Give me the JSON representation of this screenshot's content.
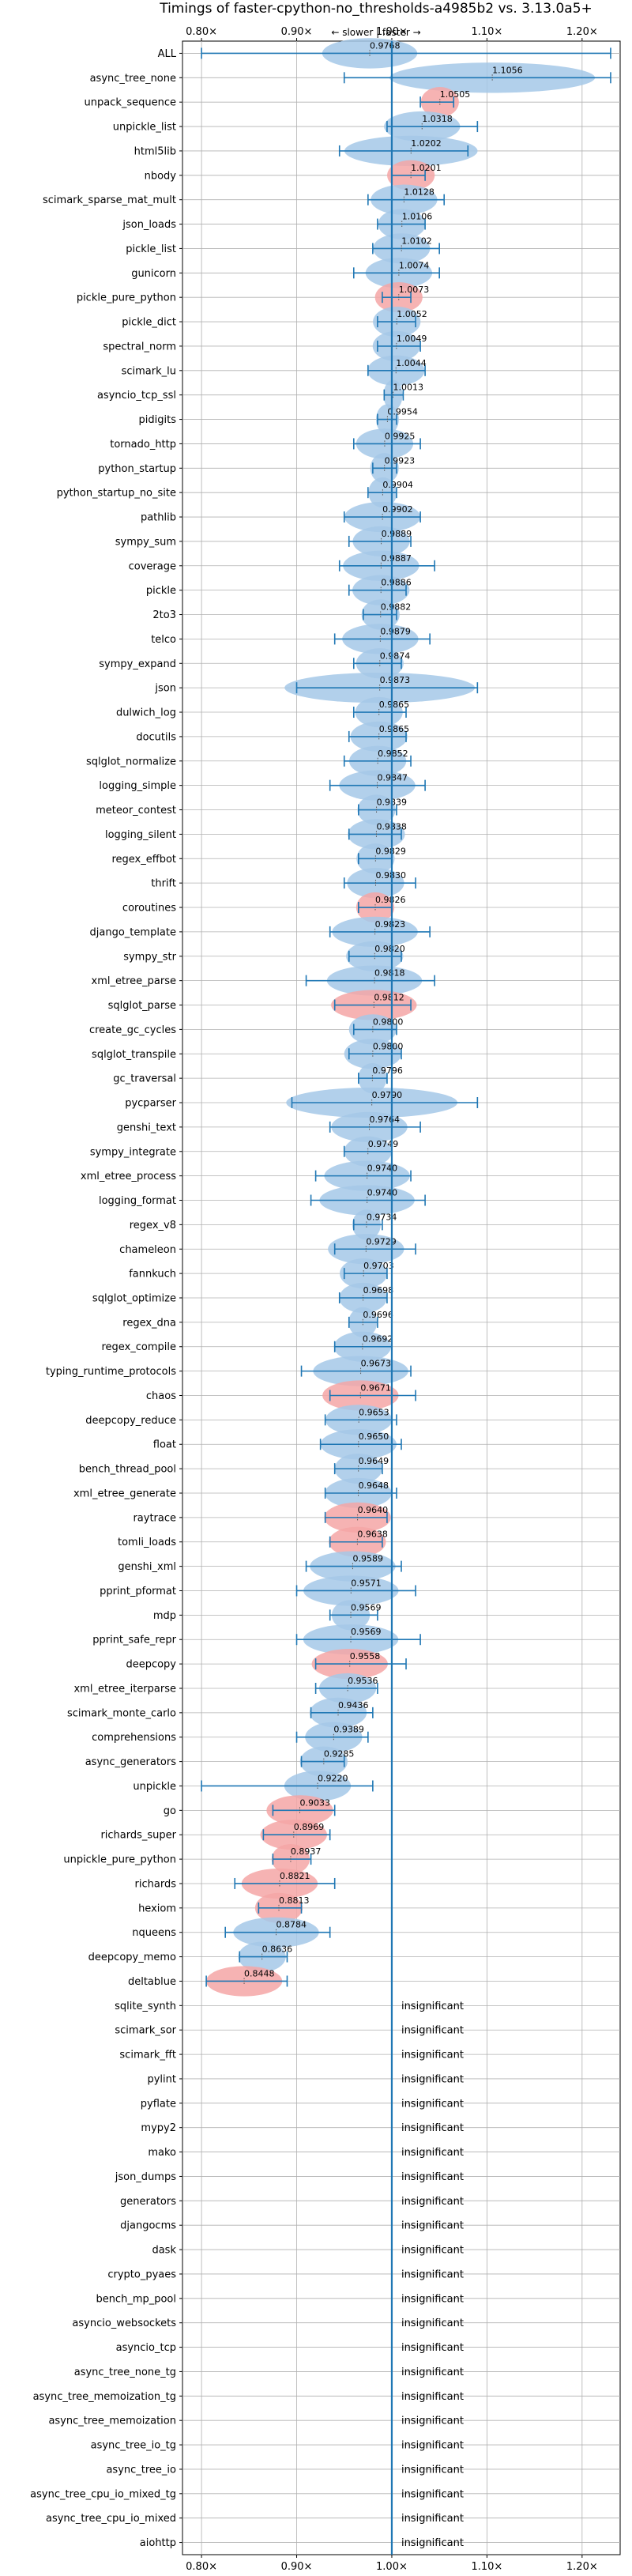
{
  "chart_data": {
    "type": "violin",
    "title": "Timings of faster-cpython-no_thresholds-a4985b2 vs. 3.13.0a5+",
    "direction_note": "← slower | faster →",
    "x_ticks": [
      {
        "value": 0.8,
        "label": "0.80×"
      },
      {
        "value": 0.9,
        "label": "0.90×"
      },
      {
        "value": 1.0,
        "label": "1.00×"
      },
      {
        "value": 1.1,
        "label": "1.10×"
      },
      {
        "value": 1.2,
        "label": "1.20×"
      }
    ],
    "xlim": [
      0.78,
      1.24
    ],
    "reference_line": 1.0,
    "grid": true,
    "colors": {
      "faster": "#a4c8e8",
      "slower": "#f4a6a6",
      "line": "#1f77b4",
      "grid": "#b0b0b0",
      "text": "#000000"
    },
    "insignificant_label": "insignificant",
    "benchmarks": [
      {
        "name": "ALL",
        "median": 0.9768,
        "label": "0.9768",
        "min": 0.8,
        "max": 1.23,
        "spread": 0.05,
        "color": "blue"
      },
      {
        "name": "async_tree_none",
        "median": 1.1056,
        "label": "1.1056",
        "min": 0.95,
        "max": 1.23,
        "spread": 0.12,
        "color": "blue"
      },
      {
        "name": "unpack_sequence",
        "median": 1.0505,
        "label": "1.0505",
        "min": 1.03,
        "max": 1.065,
        "spread": 0.02,
        "color": "red"
      },
      {
        "name": "unpickle_list",
        "median": 1.0318,
        "label": "1.0318",
        "min": 0.995,
        "max": 1.09,
        "spread": 0.04,
        "color": "blue"
      },
      {
        "name": "html5lib",
        "median": 1.0202,
        "label": "1.0202",
        "min": 0.945,
        "max": 1.08,
        "spread": 0.07,
        "color": "blue"
      },
      {
        "name": "nbody",
        "median": 1.0201,
        "label": "1.0201",
        "min": 1.0,
        "max": 1.035,
        "spread": 0.025,
        "color": "red"
      },
      {
        "name": "scimark_sparse_mat_mult",
        "median": 1.0128,
        "label": "1.0128",
        "min": 0.975,
        "max": 1.055,
        "spread": 0.035,
        "color": "blue"
      },
      {
        "name": "json_loads",
        "median": 1.0106,
        "label": "1.0106",
        "min": 0.985,
        "max": 1.035,
        "spread": 0.025,
        "color": "blue"
      },
      {
        "name": "pickle_list",
        "median": 1.0102,
        "label": "1.0102",
        "min": 0.98,
        "max": 1.05,
        "spread": 0.03,
        "color": "blue"
      },
      {
        "name": "gunicorn",
        "median": 1.0074,
        "label": "1.0074",
        "min": 0.96,
        "max": 1.05,
        "spread": 0.035,
        "color": "blue"
      },
      {
        "name": "pickle_pure_python",
        "median": 1.0073,
        "label": "1.0073",
        "min": 0.99,
        "max": 1.02,
        "spread": 0.025,
        "color": "red"
      },
      {
        "name": "pickle_dict",
        "median": 1.0052,
        "label": "1.0052",
        "min": 0.985,
        "max": 1.025,
        "spread": 0.025,
        "color": "blue"
      },
      {
        "name": "spectral_norm",
        "median": 1.0049,
        "label": "1.0049",
        "min": 0.985,
        "max": 1.03,
        "spread": 0.025,
        "color": "blue"
      },
      {
        "name": "scimark_lu",
        "median": 1.0044,
        "label": "1.0044",
        "min": 0.975,
        "max": 1.035,
        "spread": 0.03,
        "color": "blue"
      },
      {
        "name": "asyncio_tcp_ssl",
        "median": 1.0013,
        "label": "1.0013",
        "min": 0.992,
        "max": 1.012,
        "spread": 0.01,
        "color": "blue"
      },
      {
        "name": "pidigits",
        "median": 0.9954,
        "label": "0.9954",
        "min": 0.985,
        "max": 1.005,
        "spread": 0.012,
        "color": "blue"
      },
      {
        "name": "tornado_http",
        "median": 0.9925,
        "label": "0.9925",
        "min": 0.96,
        "max": 1.03,
        "spread": 0.03,
        "color": "blue"
      },
      {
        "name": "python_startup",
        "median": 0.9923,
        "label": "0.9923",
        "min": 0.98,
        "max": 1.005,
        "spread": 0.015,
        "color": "blue"
      },
      {
        "name": "python_startup_no_site",
        "median": 0.9904,
        "label": "0.9904",
        "min": 0.975,
        "max": 1.005,
        "spread": 0.015,
        "color": "blue"
      },
      {
        "name": "pathlib",
        "median": 0.9902,
        "label": "0.9902",
        "min": 0.95,
        "max": 1.03,
        "spread": 0.04,
        "color": "blue"
      },
      {
        "name": "sympy_sum",
        "median": 0.9889,
        "label": "0.9889",
        "min": 0.955,
        "max": 1.02,
        "spread": 0.03,
        "color": "blue"
      },
      {
        "name": "coverage",
        "median": 0.9887,
        "label": "0.9887",
        "min": 0.945,
        "max": 1.045,
        "spread": 0.04,
        "color": "blue"
      },
      {
        "name": "pickle",
        "median": 0.9886,
        "label": "0.9886",
        "min": 0.955,
        "max": 1.015,
        "spread": 0.03,
        "color": "blue"
      },
      {
        "name": "2to3",
        "median": 0.9882,
        "label": "0.9882",
        "min": 0.97,
        "max": 1.005,
        "spread": 0.02,
        "color": "blue"
      },
      {
        "name": "telco",
        "median": 0.9879,
        "label": "0.9879",
        "min": 0.94,
        "max": 1.04,
        "spread": 0.04,
        "color": "blue"
      },
      {
        "name": "sympy_expand",
        "median": 0.9874,
        "label": "0.9874",
        "min": 0.96,
        "max": 1.01,
        "spread": 0.025,
        "color": "blue"
      },
      {
        "name": "json",
        "median": 0.9873,
        "label": "0.9873",
        "min": 0.9,
        "max": 1.09,
        "spread": 0.1,
        "color": "blue"
      },
      {
        "name": "dulwich_log",
        "median": 0.9865,
        "label": "0.9865",
        "min": 0.96,
        "max": 1.015,
        "spread": 0.025,
        "color": "blue"
      },
      {
        "name": "docutils",
        "median": 0.9865,
        "label": "0.9865",
        "min": 0.955,
        "max": 1.015,
        "spread": 0.03,
        "color": "blue"
      },
      {
        "name": "sqlglot_normalize",
        "median": 0.9852,
        "label": "0.9852",
        "min": 0.95,
        "max": 1.02,
        "spread": 0.03,
        "color": "blue"
      },
      {
        "name": "logging_simple",
        "median": 0.9847,
        "label": "0.9847",
        "min": 0.935,
        "max": 1.035,
        "spread": 0.04,
        "color": "blue"
      },
      {
        "name": "meteor_contest",
        "median": 0.9839,
        "label": "0.9839",
        "min": 0.965,
        "max": 1.005,
        "spread": 0.02,
        "color": "blue"
      },
      {
        "name": "logging_silent",
        "median": 0.9838,
        "label": "0.9838",
        "min": 0.955,
        "max": 1.01,
        "spread": 0.03,
        "color": "blue"
      },
      {
        "name": "regex_effbot",
        "median": 0.9829,
        "label": "0.9829",
        "min": 0.965,
        "max": 1.0,
        "spread": 0.02,
        "color": "blue"
      },
      {
        "name": "thrift",
        "median": 0.983,
        "label": "0.9830",
        "min": 0.95,
        "max": 1.025,
        "spread": 0.03,
        "color": "blue"
      },
      {
        "name": "coroutines",
        "median": 0.9826,
        "label": "0.9826",
        "min": 0.965,
        "max": 1.0,
        "spread": 0.02,
        "color": "red"
      },
      {
        "name": "django_template",
        "median": 0.9823,
        "label": "0.9823",
        "min": 0.935,
        "max": 1.04,
        "spread": 0.045,
        "color": "blue"
      },
      {
        "name": "sympy_str",
        "median": 0.982,
        "label": "0.9820",
        "min": 0.955,
        "max": 1.01,
        "spread": 0.03,
        "color": "blue"
      },
      {
        "name": "xml_etree_parse",
        "median": 0.9818,
        "label": "0.9818",
        "min": 0.91,
        "max": 1.045,
        "spread": 0.05,
        "color": "blue"
      },
      {
        "name": "sqlglot_parse",
        "median": 0.9812,
        "label": "0.9812",
        "min": 0.94,
        "max": 1.02,
        "spread": 0.045,
        "color": "red"
      },
      {
        "name": "create_gc_cycles",
        "median": 0.98,
        "label": "0.9800",
        "min": 0.96,
        "max": 1.005,
        "spread": 0.025,
        "color": "blue"
      },
      {
        "name": "sqlglot_transpile",
        "median": 0.98,
        "label": "0.9800",
        "min": 0.955,
        "max": 1.01,
        "spread": 0.03,
        "color": "blue"
      },
      {
        "name": "gc_traversal",
        "median": 0.9796,
        "label": "0.9796",
        "min": 0.965,
        "max": 0.995,
        "spread": 0.015,
        "color": "blue"
      },
      {
        "name": "pycparser",
        "median": 0.979,
        "label": "0.9790",
        "min": 0.895,
        "max": 1.09,
        "spread": 0.09,
        "color": "blue"
      },
      {
        "name": "genshi_text",
        "median": 0.9764,
        "label": "0.9764",
        "min": 0.935,
        "max": 1.03,
        "spread": 0.04,
        "color": "blue"
      },
      {
        "name": "sympy_integrate",
        "median": 0.9749,
        "label": "0.9749",
        "min": 0.95,
        "max": 1.0,
        "spread": 0.025,
        "color": "blue"
      },
      {
        "name": "xml_etree_process",
        "median": 0.974,
        "label": "0.9740",
        "min": 0.92,
        "max": 1.02,
        "spread": 0.045,
        "color": "blue"
      },
      {
        "name": "logging_format",
        "median": 0.974,
        "label": "0.9740",
        "min": 0.915,
        "max": 1.035,
        "spread": 0.05,
        "color": "blue"
      },
      {
        "name": "regex_v8",
        "median": 0.9734,
        "label": "0.9734",
        "min": 0.96,
        "max": 0.99,
        "spread": 0.015,
        "color": "blue"
      },
      {
        "name": "chameleon",
        "median": 0.9729,
        "label": "0.9729",
        "min": 0.94,
        "max": 1.025,
        "spread": 0.04,
        "color": "blue"
      },
      {
        "name": "fannkuch",
        "median": 0.9703,
        "label": "0.9703",
        "min": 0.95,
        "max": 0.995,
        "spread": 0.025,
        "color": "blue"
      },
      {
        "name": "sqlglot_optimize",
        "median": 0.9698,
        "label": "0.9698",
        "min": 0.945,
        "max": 0.995,
        "spread": 0.025,
        "color": "blue"
      },
      {
        "name": "regex_dna",
        "median": 0.9696,
        "label": "0.9696",
        "min": 0.955,
        "max": 0.985,
        "spread": 0.015,
        "color": "blue"
      },
      {
        "name": "regex_compile",
        "median": 0.9692,
        "label": "0.9692",
        "min": 0.94,
        "max": 1.0,
        "spread": 0.03,
        "color": "blue"
      },
      {
        "name": "typing_runtime_protocols",
        "median": 0.9673,
        "label": "0.9673",
        "min": 0.905,
        "max": 1.02,
        "spread": 0.05,
        "color": "blue"
      },
      {
        "name": "chaos",
        "median": 0.9671,
        "label": "0.9671",
        "min": 0.935,
        "max": 1.025,
        "spread": 0.04,
        "color": "red"
      },
      {
        "name": "deepcopy_reduce",
        "median": 0.9653,
        "label": "0.9653",
        "min": 0.93,
        "max": 1.005,
        "spread": 0.035,
        "color": "blue"
      },
      {
        "name": "float",
        "median": 0.965,
        "label": "0.9650",
        "min": 0.925,
        "max": 1.01,
        "spread": 0.04,
        "color": "blue"
      },
      {
        "name": "bench_thread_pool",
        "median": 0.9649,
        "label": "0.9649",
        "min": 0.94,
        "max": 0.99,
        "spread": 0.025,
        "color": "blue"
      },
      {
        "name": "xml_etree_generate",
        "median": 0.9648,
        "label": "0.9648",
        "min": 0.93,
        "max": 1.005,
        "spread": 0.035,
        "color": "blue"
      },
      {
        "name": "raytrace",
        "median": 0.964,
        "label": "0.9640",
        "min": 0.93,
        "max": 0.995,
        "spread": 0.035,
        "color": "red"
      },
      {
        "name": "tomli_loads",
        "median": 0.9638,
        "label": "0.9638",
        "min": 0.935,
        "max": 0.99,
        "spread": 0.03,
        "color": "red"
      },
      {
        "name": "genshi_xml",
        "median": 0.9589,
        "label": "0.9589",
        "min": 0.91,
        "max": 1.01,
        "spread": 0.045,
        "color": "blue"
      },
      {
        "name": "pprint_pformat",
        "median": 0.9571,
        "label": "0.9571",
        "min": 0.9,
        "max": 1.025,
        "spread": 0.05,
        "color": "blue"
      },
      {
        "name": "mdp",
        "median": 0.9569,
        "label": "0.9569",
        "min": 0.935,
        "max": 0.985,
        "spread": 0.02,
        "color": "blue"
      },
      {
        "name": "pprint_safe_repr",
        "median": 0.9569,
        "label": "0.9569",
        "min": 0.9,
        "max": 1.03,
        "spread": 0.05,
        "color": "blue"
      },
      {
        "name": "deepcopy",
        "median": 0.9558,
        "label": "0.9558",
        "min": 0.92,
        "max": 1.015,
        "spread": 0.04,
        "color": "red"
      },
      {
        "name": "xml_etree_iterparse",
        "median": 0.9536,
        "label": "0.9536",
        "min": 0.92,
        "max": 0.985,
        "spread": 0.03,
        "color": "blue"
      },
      {
        "name": "scimark_monte_carlo",
        "median": 0.9436,
        "label": "0.9436",
        "min": 0.915,
        "max": 0.98,
        "spread": 0.03,
        "color": "blue"
      },
      {
        "name": "comprehensions",
        "median": 0.9389,
        "label": "0.9389",
        "min": 0.9,
        "max": 0.975,
        "spread": 0.03,
        "color": "blue"
      },
      {
        "name": "async_generators",
        "median": 0.9285,
        "label": "0.9285",
        "min": 0.905,
        "max": 0.95,
        "spread": 0.025,
        "color": "blue"
      },
      {
        "name": "unpickle",
        "median": 0.922,
        "label": "0.9220",
        "min": 0.8,
        "max": 0.98,
        "spread": 0.035,
        "color": "blue"
      },
      {
        "name": "go",
        "median": 0.9033,
        "label": "0.9033",
        "min": 0.875,
        "max": 0.94,
        "spread": 0.035,
        "color": "red"
      },
      {
        "name": "richards_super",
        "median": 0.8969,
        "label": "0.8969",
        "min": 0.865,
        "max": 0.935,
        "spread": 0.035,
        "color": "red"
      },
      {
        "name": "unpickle_pure_python",
        "median": 0.8937,
        "label": "0.8937",
        "min": 0.875,
        "max": 0.915,
        "spread": 0.02,
        "color": "red"
      },
      {
        "name": "richards",
        "median": 0.8821,
        "label": "0.8821",
        "min": 0.835,
        "max": 0.94,
        "spread": 0.04,
        "color": "red"
      },
      {
        "name": "hexiom",
        "median": 0.8813,
        "label": "0.8813",
        "min": 0.86,
        "max": 0.905,
        "spread": 0.025,
        "color": "red"
      },
      {
        "name": "nqueens",
        "median": 0.8784,
        "label": "0.8784",
        "min": 0.825,
        "max": 0.935,
        "spread": 0.045,
        "color": "blue"
      },
      {
        "name": "deepcopy_memo",
        "median": 0.8636,
        "label": "0.8636",
        "min": 0.84,
        "max": 0.89,
        "spread": 0.025,
        "color": "blue"
      },
      {
        "name": "deltablue",
        "median": 0.8448,
        "label": "0.8448",
        "min": 0.805,
        "max": 0.89,
        "spread": 0.04,
        "color": "red"
      }
    ],
    "insignificant": [
      "sqlite_synth",
      "scimark_sor",
      "scimark_fft",
      "pylint",
      "pyflate",
      "mypy2",
      "mako",
      "json_dumps",
      "generators",
      "djangocms",
      "dask",
      "crypto_pyaes",
      "bench_mp_pool",
      "asyncio_websockets",
      "asyncio_tcp",
      "async_tree_none_tg",
      "async_tree_memoization_tg",
      "async_tree_memoization",
      "async_tree_io_tg",
      "async_tree_io",
      "async_tree_cpu_io_mixed_tg",
      "async_tree_cpu_io_mixed",
      "aiohttp"
    ]
  }
}
